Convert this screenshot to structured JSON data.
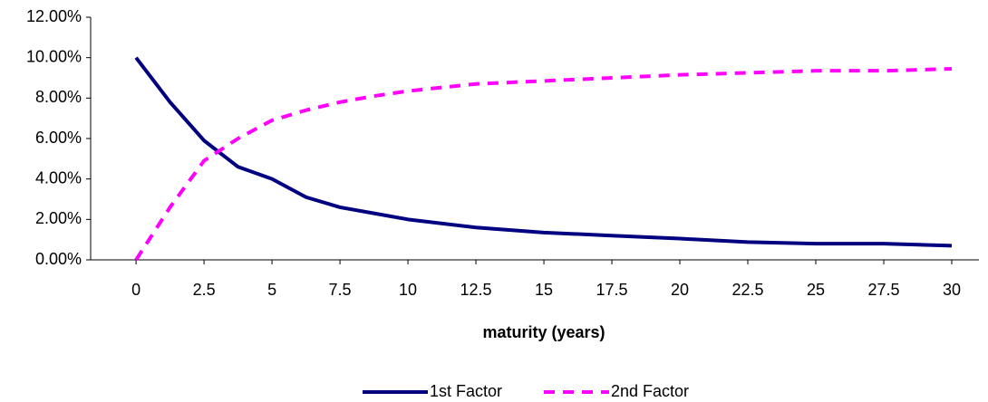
{
  "chart_data": {
    "type": "line",
    "x_label": "maturity (years)",
    "x": [
      0,
      1.25,
      2.5,
      3.75,
      5,
      6.25,
      7.5,
      8.75,
      10,
      12.5,
      15,
      17.5,
      20,
      22.5,
      25,
      27.5,
      30
    ],
    "series": [
      {
        "name": "1st Factor",
        "color": "#000080",
        "dash": false,
        "values": [
          10,
          7.8,
          5.9,
          4.6,
          4.0,
          3.1,
          2.6,
          2.3,
          2.0,
          1.6,
          1.35,
          1.2,
          1.05,
          0.88,
          0.8,
          0.8,
          0.7
        ]
      },
      {
        "name": "2nd Factor",
        "color": "#ff00ff",
        "dash": true,
        "values": [
          0,
          2.6,
          4.9,
          6.0,
          6.9,
          7.4,
          7.8,
          8.1,
          8.35,
          8.7,
          8.85,
          9.0,
          9.15,
          9.25,
          9.35,
          9.35,
          9.45
        ]
      }
    ],
    "xlim": [
      -1.67,
      31
    ],
    "xticks": [
      0,
      2.5,
      5,
      7.5,
      10,
      12.5,
      15,
      17.5,
      20,
      22.5,
      25,
      27.5,
      30
    ],
    "ylim": [
      0,
      12
    ],
    "yticks": [
      {
        "value": 0,
        "label": "0.00%"
      },
      {
        "value": 2,
        "label": "2.00%"
      },
      {
        "value": 4,
        "label": "4.00%"
      },
      {
        "value": 6,
        "label": "6.00%"
      },
      {
        "value": 8,
        "label": "8.00%"
      },
      {
        "value": 10,
        "label": "10.00%"
      },
      {
        "value": 12,
        "label": "12.00%"
      }
    ],
    "grid": false,
    "legend": "bottom"
  }
}
